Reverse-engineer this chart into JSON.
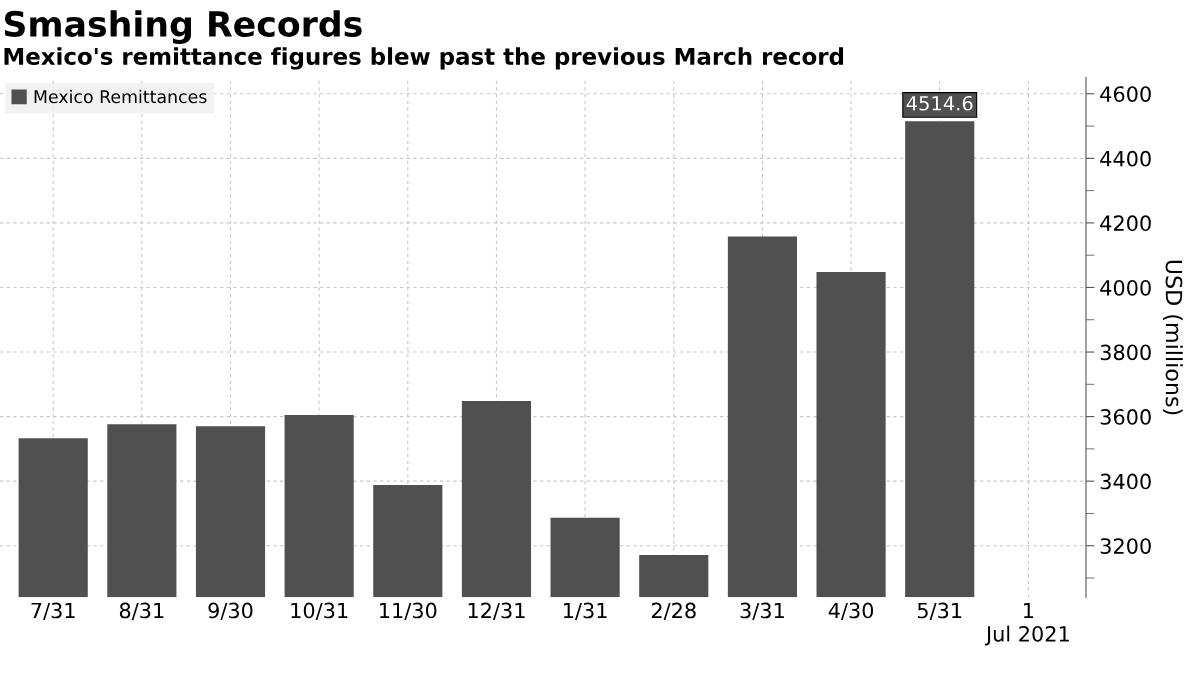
{
  "chart_data": {
    "type": "bar",
    "title": "Smashing Records",
    "subtitle": "Mexico's remittance figures blew past the previous March record",
    "categories": [
      "7/31",
      "8/31",
      "9/30",
      "10/31",
      "11/30",
      "12/31",
      "1/31",
      "2/28",
      "3/31",
      "4/30",
      "5/31",
      "1\nJul 2021"
    ],
    "series": [
      {
        "name": "Mexico Remittances",
        "color": "#505050",
        "values": [
          3533,
          3576,
          3570,
          3605,
          3388,
          3648,
          3287,
          3171,
          4158,
          4048,
          4514.6,
          null
        ],
        "value_labels": [
          null,
          null,
          null,
          null,
          null,
          null,
          null,
          null,
          null,
          null,
          "4514.6",
          null
        ]
      }
    ],
    "ylabel": "USD (millions)",
    "ylim": [
      3040,
      4650
    ],
    "yticks": [
      3200,
      3400,
      3600,
      3800,
      4000,
      4200,
      4400,
      4600
    ],
    "grid": true,
    "legend": "top left"
  }
}
